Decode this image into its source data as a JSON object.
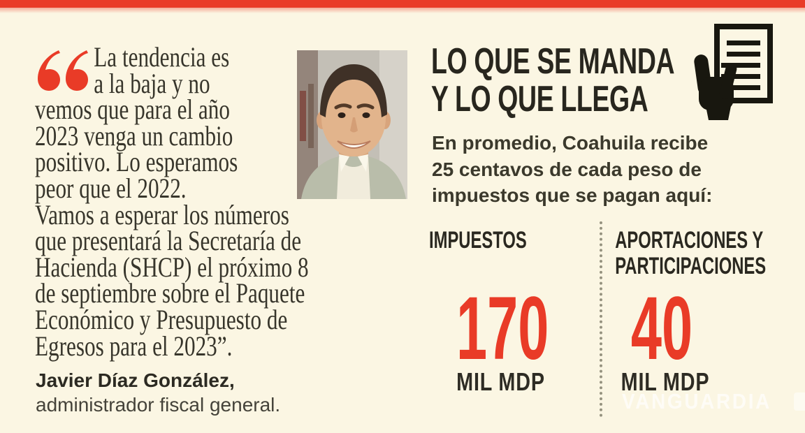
{
  "colors": {
    "accent_red": "#e93b27",
    "background": "#fbf6e3",
    "headline_black": "#28261e",
    "text_dark": "#37352b",
    "divider_gray": "#95927f"
  },
  "quote": {
    "mark_icon": "open-double-quote",
    "lines": [
      "La tendencia es",
      "a la baja y no",
      "vemos que para el año",
      "2023 venga un cambio",
      "positivo. Lo esperamos",
      "peor que el 2022.",
      "Vamos a esperar los números",
      "que presentará la Secretaría de",
      "Hacienda (SHCP) el próximo 8",
      "de septiembre sobre el Paquete",
      "Económico y Presupuesto de",
      "Egresos para el 2023”."
    ],
    "author": "Javier Díaz González,",
    "author_role": "administrador fiscal general."
  },
  "panel": {
    "title_line1": "LO QUE SE MANDA",
    "title_line2": "Y LO QUE LLEGA",
    "icon": "hand-holding-document",
    "intro_lines": [
      "En promedio, Coahuila recibe",
      "25 centavos de cada peso de",
      "impuestos que se pagan aquí:"
    ],
    "stats": [
      {
        "label_lines": [
          "IMPUESTOS"
        ],
        "value": "170",
        "unit": "MIL MDP"
      },
      {
        "label_lines": [
          "APORTACIONES Y",
          "PARTICIPACIONES"
        ],
        "value": "40",
        "unit": "MIL MDP"
      }
    ]
  },
  "watermark": {
    "text": "VANGUARDIA"
  }
}
